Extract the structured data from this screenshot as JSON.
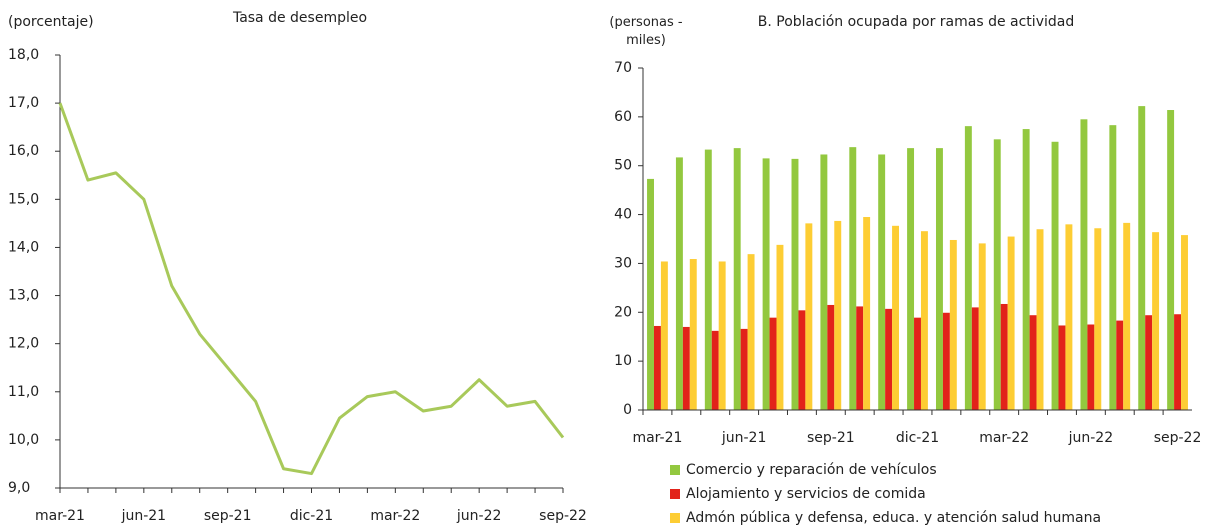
{
  "chart_data": [
    {
      "type": "line",
      "title": "Tasa de desempleo",
      "y_label": "(porcentaje)",
      "categories": [
        "mar-21",
        null,
        null,
        "jun-21",
        null,
        null,
        "sep-21",
        null,
        null,
        "dic-21",
        null,
        null,
        "mar-22",
        null,
        null,
        "jun-22",
        null,
        null,
        "sep-22"
      ],
      "series": [
        {
          "name": "Tasa de desempleo",
          "color": "#a8c95a",
          "values": [
            17.0,
            15.4,
            15.55,
            15.0,
            13.2,
            12.2,
            11.5,
            10.8,
            9.4,
            9.3,
            10.45,
            10.9,
            11.0,
            10.6,
            10.7,
            11.25,
            10.7,
            10.8,
            10.05
          ]
        }
      ],
      "ylim": [
        9,
        18
      ],
      "yticks": [
        {
          "value": 9,
          "label": "9,0"
        },
        {
          "value": 10,
          "label": "10,0"
        },
        {
          "value": 11,
          "label": "11,0"
        },
        {
          "value": 12,
          "label": "12,0"
        },
        {
          "value": 13,
          "label": "13,0"
        },
        {
          "value": 14,
          "label": "14,0"
        },
        {
          "value": 15,
          "label": "15,0"
        },
        {
          "value": 16,
          "label": "16,0"
        },
        {
          "value": 17,
          "label": "17,0"
        },
        {
          "value": 18,
          "label": "18,0"
        }
      ]
    },
    {
      "type": "bar",
      "title": "B. Población ocupada por ramas de actividad",
      "y_label": "(personas - miles)",
      "categories": [
        "mar-21",
        null,
        null,
        "jun-21",
        null,
        null,
        "sep-21",
        null,
        null,
        "dic-21",
        null,
        null,
        "mar-22",
        null,
        null,
        "jun-22",
        null,
        null,
        "sep-22"
      ],
      "series": [
        {
          "name": "Comercio y reparación de vehículos",
          "color": "#93c83f",
          "values": [
            47.3,
            51.7,
            53.3,
            53.6,
            51.5,
            51.4,
            52.3,
            53.8,
            52.3,
            53.6,
            53.6,
            58.1,
            55.4,
            57.5,
            54.9,
            59.5,
            58.3,
            62.2,
            61.4
          ]
        },
        {
          "name": "Alojamiento y servicios de comida",
          "color": "#e2231a",
          "values": [
            17.2,
            17.0,
            16.2,
            16.6,
            18.9,
            20.4,
            21.5,
            21.2,
            20.7,
            18.9,
            19.9,
            21.0,
            21.7,
            19.4,
            17.3,
            17.5,
            18.3,
            19.4,
            19.6
          ]
        },
        {
          "name": "Admón pública y defensa, educa. y atención salud humana",
          "color": "#fdcd34",
          "values": [
            30.4,
            30.9,
            30.4,
            31.9,
            33.8,
            38.2,
            38.7,
            39.5,
            37.7,
            36.6,
            34.8,
            34.1,
            35.5,
            37.0,
            38.0,
            37.2,
            38.3,
            36.4,
            35.8
          ]
        }
      ],
      "ylim": [
        0,
        70
      ],
      "yticks": [
        0,
        10,
        20,
        30,
        40,
        50,
        60,
        70
      ],
      "legend": "bottom-left"
    }
  ]
}
